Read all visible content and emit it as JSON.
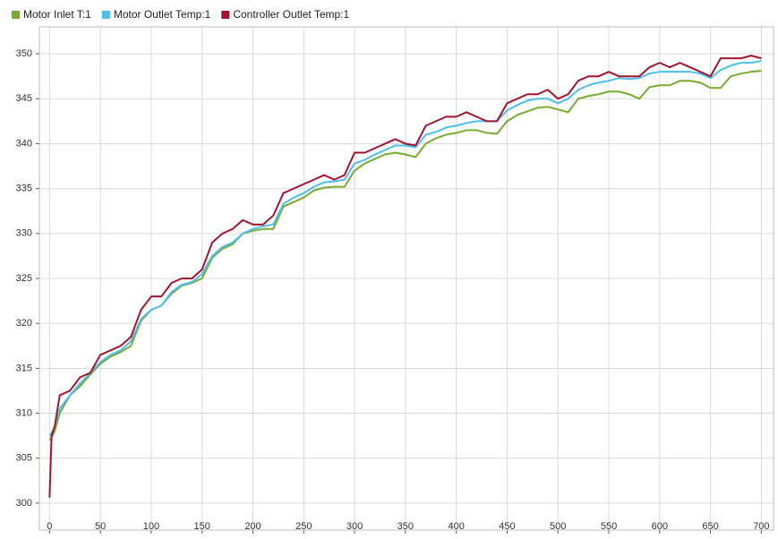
{
  "chart_data": {
    "type": "line",
    "x": [
      0,
      2,
      5,
      10,
      20,
      30,
      40,
      50,
      60,
      70,
      80,
      90,
      100,
      110,
      120,
      130,
      140,
      150,
      160,
      170,
      180,
      190,
      200,
      210,
      220,
      230,
      240,
      250,
      260,
      270,
      280,
      290,
      300,
      310,
      320,
      330,
      340,
      350,
      360,
      370,
      380,
      390,
      400,
      410,
      420,
      430,
      440,
      450,
      460,
      470,
      480,
      490,
      500,
      510,
      520,
      530,
      540,
      550,
      560,
      570,
      580,
      590,
      600,
      610,
      620,
      630,
      640,
      650,
      660,
      670,
      680,
      690,
      700
    ],
    "series": [
      {
        "name": "Motor Inlet T:1",
        "color": "#77ac30",
        "values": [
          307,
          307.3,
          308,
          310,
          312,
          313,
          314.3,
          315.5,
          316.3,
          316.8,
          317.5,
          320.3,
          321.5,
          322,
          323.3,
          324.2,
          324.5,
          325,
          327.3,
          328.3,
          328.8,
          330,
          330.3,
          330.5,
          330.5,
          333,
          333.5,
          334,
          334.8,
          335.1,
          335.2,
          335.2,
          337,
          337.8,
          338.3,
          338.8,
          339,
          338.8,
          338.5,
          340,
          340.6,
          341,
          341.2,
          341.5,
          341.5,
          341.2,
          341.1,
          342.5,
          343.2,
          343.6,
          344,
          344.1,
          343.8,
          343.5,
          345,
          345.3,
          345.5,
          345.8,
          345.8,
          345.5,
          345,
          346.3,
          346.5,
          346.5,
          347,
          347,
          346.8,
          346.2,
          346.2,
          347.5,
          347.8,
          348,
          348.1
        ]
      },
      {
        "name": "Motor Outlet Temp:1",
        "color": "#4dbeee",
        "values": [
          307.5,
          307.8,
          308.5,
          310.5,
          312,
          313.3,
          314.5,
          315.7,
          316.5,
          317,
          318,
          320.5,
          321.5,
          322,
          323.5,
          324.3,
          324.6,
          325.5,
          327.5,
          328.5,
          329,
          330,
          330.5,
          330.8,
          331,
          333.3,
          334,
          334.5,
          335.2,
          335.7,
          335.8,
          336,
          337.8,
          338.2,
          338.8,
          339.3,
          339.8,
          339.8,
          339.6,
          341,
          341.3,
          341.8,
          342,
          342.3,
          342.5,
          342.5,
          342.5,
          343.7,
          344.3,
          344.8,
          345,
          345,
          344.5,
          345,
          346,
          346.5,
          346.8,
          347,
          347.3,
          347.2,
          347.3,
          347.8,
          348,
          348,
          348,
          348,
          347.8,
          347.3,
          348.2,
          348.7,
          349,
          349,
          349.2
        ]
      },
      {
        "name": "Controller Outlet Temp:1",
        "color": "#a2142f",
        "values": [
          300.6,
          307.5,
          308.5,
          312,
          312.5,
          314,
          314.5,
          316.5,
          317,
          317.5,
          318.5,
          321.5,
          323,
          323,
          324.5,
          325,
          325,
          326,
          329,
          330,
          330.5,
          331.5,
          331,
          331,
          332,
          334.5,
          335,
          335.5,
          336,
          336.5,
          336,
          336.5,
          339,
          339,
          339.5,
          340,
          340.5,
          340,
          339.8,
          342,
          342.5,
          343,
          343,
          343.5,
          343,
          342.5,
          342.5,
          344.5,
          345,
          345.5,
          345.5,
          346,
          345,
          345.5,
          347,
          347.5,
          347.5,
          348,
          347.5,
          347.5,
          347.5,
          348.5,
          349,
          348.5,
          349,
          348.5,
          348,
          347.5,
          349.5,
          349.5,
          349.5,
          349.8,
          349.5
        ]
      }
    ],
    "xlim": [
      -10,
      712
    ],
    "ylim": [
      297,
      353
    ],
    "xticks": [
      0,
      50,
      100,
      150,
      200,
      250,
      300,
      350,
      400,
      450,
      500,
      550,
      600,
      650,
      700
    ],
    "yticks": [
      300,
      305,
      310,
      315,
      320,
      325,
      330,
      335,
      340,
      345,
      350
    ],
    "grid": true,
    "legend": "top-left"
  }
}
